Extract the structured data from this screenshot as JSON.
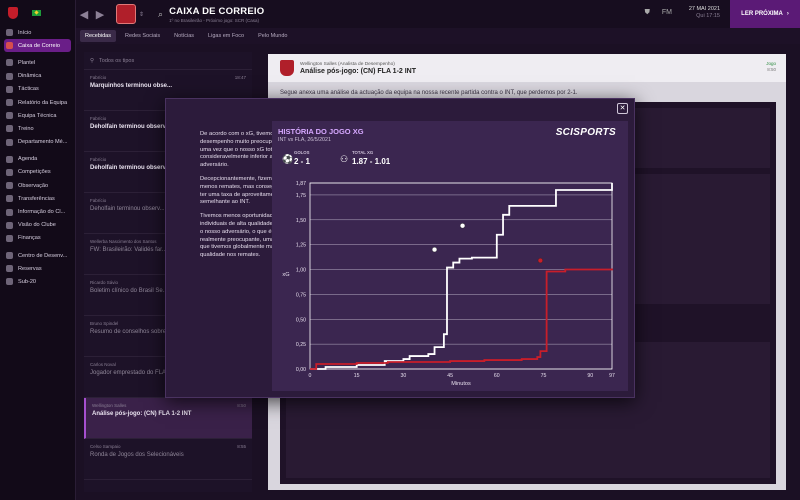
{
  "header": {
    "title": "CAIXA DE CORREIO",
    "subtitle": "1º no Brasileirão - Próximo jogo: SCR (Casa)",
    "fm_label": "FM",
    "date": "27 MAI 2021",
    "day": "Qui 17:15",
    "continue_label": "LER PRÓXIMA"
  },
  "sidebar": {
    "items": [
      {
        "label": "Início"
      },
      {
        "label": "Caixa de Correio"
      },
      {
        "label": "Plantel"
      },
      {
        "label": "Dinâmica"
      },
      {
        "label": "Tácticas"
      },
      {
        "label": "Relatório da Equipa"
      },
      {
        "label": "Equipa Técnica"
      },
      {
        "label": "Treino"
      },
      {
        "label": "Departamento Mé..."
      },
      {
        "label": "Agenda"
      },
      {
        "label": "Competições"
      },
      {
        "label": "Observação"
      },
      {
        "label": "Transferências"
      },
      {
        "label": "Informação do Cl..."
      },
      {
        "label": "Visão do Clube"
      },
      {
        "label": "Finanças"
      },
      {
        "label": "Centro de Desenv..."
      },
      {
        "label": "Reservas"
      },
      {
        "label": "Sub-20"
      }
    ]
  },
  "tabs": [
    "Recebidas",
    "Redes Sociais",
    "Notícias",
    "Ligas em Foco",
    "Pelo Mundo"
  ],
  "inbox": {
    "filter_placeholder": "Todos os tipos",
    "messages": [
      {
        "from": "Fabrício",
        "subject": "Marquinhos terminou obse...",
        "time": "18:47",
        "bold": true
      },
      {
        "from": "Fabrício",
        "subject": "Deholfain terminou observ...",
        "time": "",
        "bold": true
      },
      {
        "from": "Fabrício",
        "subject": "Deholfain terminou observ...",
        "time": "",
        "bold": true
      },
      {
        "from": "Fabrício",
        "subject": "Deholfain terminou observ...",
        "time": "",
        "bold": false
      },
      {
        "from": "Wellerba Nascimento dos Santos",
        "subject": "FW: Brasileirão: Validés far...",
        "time": "",
        "bold": false
      },
      {
        "from": "Ricardo Sávio",
        "subject": "Boletim clínico do Brasil Se...",
        "time": "",
        "bold": false
      },
      {
        "from": "Bruno Spindel",
        "subject": "Resumo de conselhos sobre...",
        "time": "",
        "bold": false
      },
      {
        "from": "Carlos Noval",
        "subject": "Jogador emprestado do FLA ...",
        "time": "",
        "bold": false
      },
      {
        "from": "Wellington Salles",
        "subject": "Análise pós-jogo: (CN) FLA 1-2 INT",
        "time": "8:50",
        "bold": true,
        "selected": true
      },
      {
        "from": "Celso Sampaio",
        "subject": "Ronda de Jogos dos Selecionáveis",
        "time": "8:55",
        "bold": false
      }
    ]
  },
  "email": {
    "from": "Wellington Salles (Analista de Desempenho)",
    "subject": "Análise pós-jogo: (CN) FLA 1-2 INT",
    "tag": "Jogo",
    "time": "8:50",
    "body": "Segue anexa uma análise da actuação da equipa na nossa recente partida contra o INT, que perdemos por 2-1."
  },
  "popup": {
    "paragraphs": [
      "De acordo com o xG, tivemos um desempenho muito preocupante, uma vez que o nosso xG total foi consideravelmente inferior ao do adversário.",
      "Decepcionantemente, fizemos menos remates, mas conseguimos ter uma taxa de aproveitamento semelhante ao INT.",
      "Tivemos menos oportunidades individuais de alta qualidade do que o nosso adversário, o que é realmente preocupante, uma vez que tivemos globalmente mais qualidade nos remates."
    ],
    "graph_title": "HISTÓRIA DO JOGO XG",
    "graph_sub": "INT vs FLA, 26/5/2021",
    "brand": "SCISPORTS",
    "goals_label": "GOLOS",
    "goals_value": "2 - 1",
    "xg_label": "TOTAL XG",
    "xg_value": "1.87 - 1.01"
  },
  "chart_data": {
    "type": "line",
    "title": "HISTÓRIA DO JOGO XG",
    "xlabel": "Minutos",
    "ylabel": "xG",
    "xlim": [
      0,
      97
    ],
    "ylim": [
      0,
      1.87
    ],
    "x_ticks": [
      0,
      15,
      30,
      45,
      60,
      75,
      90,
      97
    ],
    "y_ticks": [
      "0,00",
      "0,25",
      "0,50",
      "0,75",
      "1,00",
      "1,25",
      "1,50",
      "1,75",
      "1,87"
    ],
    "series": [
      {
        "team": "INT",
        "color": "#ffffff",
        "points": [
          [
            0,
            0.0
          ],
          [
            5,
            0.02
          ],
          [
            15,
            0.04
          ],
          [
            24,
            0.08
          ],
          [
            30,
            0.1
          ],
          [
            32,
            0.13
          ],
          [
            38,
            0.15
          ],
          [
            40,
            0.22
          ],
          [
            43,
            0.35
          ],
          [
            44,
            1.02
          ],
          [
            46,
            1.07
          ],
          [
            48,
            1.11
          ],
          [
            52,
            1.12
          ],
          [
            60,
            1.35
          ],
          [
            62,
            1.42
          ],
          [
            62,
            1.55
          ],
          [
            64,
            1.64
          ],
          [
            79,
            1.64
          ],
          [
            79,
            1.8
          ],
          [
            97,
            1.87
          ]
        ],
        "goal_markers": [
          [
            40,
            1.12
          ],
          [
            49,
            1.36
          ]
        ]
      },
      {
        "team": "FLA",
        "color": "#c81e2a",
        "points": [
          [
            0,
            0.0
          ],
          [
            2,
            0.05
          ],
          [
            15,
            0.06
          ],
          [
            25,
            0.07
          ],
          [
            45,
            0.08
          ],
          [
            56,
            0.09
          ],
          [
            68,
            0.1
          ],
          [
            73,
            0.12
          ],
          [
            74,
            0.18
          ],
          [
            76,
            0.2
          ],
          [
            76,
            0.98
          ],
          [
            82,
            1.0
          ],
          [
            97,
            1.01
          ]
        ],
        "goal_markers": [
          [
            74,
            1.01
          ]
        ]
      }
    ],
    "colors": {
      "int": "#ffffff",
      "fla": "#c81e2a"
    }
  }
}
